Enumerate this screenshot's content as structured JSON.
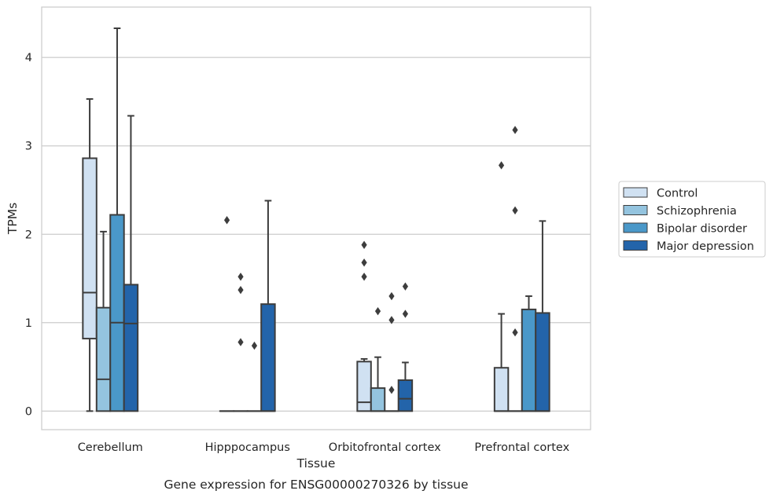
{
  "caption": "Gene expression for ENSG00000270326 by tissue",
  "colors": {
    "Control": "#d0e1f2",
    "Schizophrenia": "#94c4df",
    "Bipolar disorder": "#4a98c9",
    "Major depression": "#2364aa",
    "edge": "#3d3d3d",
    "grid": "#cccccc",
    "frame": "#cccccc"
  },
  "chart_data": {
    "type": "boxplot",
    "xlabel": "Tissue",
    "ylabel": "TPMs",
    "ylim": [
      -0.21,
      4.57
    ],
    "yticks": [
      0,
      1,
      2,
      3,
      4
    ],
    "grid": true,
    "legend_position": "right",
    "categories": [
      "Cerebellum",
      "Hipppocampus",
      "Orbitofrontal cortex",
      "Prefrontal cortex"
    ],
    "series": [
      {
        "name": "Control",
        "boxes": [
          {
            "whislo": 0.0,
            "q1": 0.82,
            "med": 1.34,
            "q3": 2.86,
            "whishi": 3.53,
            "fliers": []
          },
          {
            "whislo": 0.0,
            "q1": 0.0,
            "med": 0.0,
            "q3": 0.0,
            "whishi": 0.0,
            "fliers": [
              2.16
            ]
          },
          {
            "whislo": 0.0,
            "q1": 0.0,
            "med": 0.1,
            "q3": 0.56,
            "whishi": 0.59,
            "fliers": [
              1.52,
              1.68,
              1.88
            ]
          },
          {
            "whislo": 0.0,
            "q1": 0.0,
            "med": 0.0,
            "q3": 0.49,
            "whishi": 1.1,
            "fliers": [
              2.78
            ]
          }
        ]
      },
      {
        "name": "Schizophrenia",
        "boxes": [
          {
            "whislo": 0.0,
            "q1": 0.0,
            "med": 0.36,
            "q3": 1.17,
            "whishi": 2.03,
            "fliers": []
          },
          {
            "whislo": 0.0,
            "q1": 0.0,
            "med": 0.0,
            "q3": 0.0,
            "whishi": 0.0,
            "fliers": [
              0.78,
              1.37,
              1.52
            ]
          },
          {
            "whislo": 0.0,
            "q1": 0.0,
            "med": 0.0,
            "q3": 0.26,
            "whishi": 0.61,
            "fliers": [
              1.13
            ]
          },
          {
            "whislo": 0.0,
            "q1": 0.0,
            "med": 0.0,
            "q3": 0.0,
            "whishi": 0.0,
            "fliers": [
              0.89,
              2.27,
              3.18
            ]
          }
        ]
      },
      {
        "name": "Bipolar disorder",
        "boxes": [
          {
            "whislo": 0.0,
            "q1": 0.0,
            "med": 1.0,
            "q3": 2.22,
            "whishi": 4.33,
            "fliers": []
          },
          {
            "whislo": 0.0,
            "q1": 0.0,
            "med": 0.0,
            "q3": 0.0,
            "whishi": 0.0,
            "fliers": [
              0.74
            ]
          },
          {
            "whislo": 0.0,
            "q1": 0.0,
            "med": 0.0,
            "q3": 0.0,
            "whishi": 0.0,
            "fliers": [
              0.24,
              1.03,
              1.3
            ]
          },
          {
            "whislo": 0.0,
            "q1": 0.0,
            "med": 0.0,
            "q3": 1.15,
            "whishi": 1.3,
            "fliers": []
          }
        ]
      },
      {
        "name": "Major depression",
        "boxes": [
          {
            "whislo": 0.0,
            "q1": 0.0,
            "med": 0.99,
            "q3": 1.43,
            "whishi": 3.34,
            "fliers": []
          },
          {
            "whislo": 0.0,
            "q1": 0.0,
            "med": 0.0,
            "q3": 1.21,
            "whishi": 2.38,
            "fliers": []
          },
          {
            "whislo": 0.0,
            "q1": 0.0,
            "med": 0.14,
            "q3": 0.35,
            "whishi": 0.55,
            "fliers": [
              1.1,
              1.41
            ]
          },
          {
            "whislo": 0.0,
            "q1": 0.0,
            "med": 0.0,
            "q3": 1.11,
            "whishi": 2.15,
            "fliers": []
          }
        ]
      }
    ]
  }
}
